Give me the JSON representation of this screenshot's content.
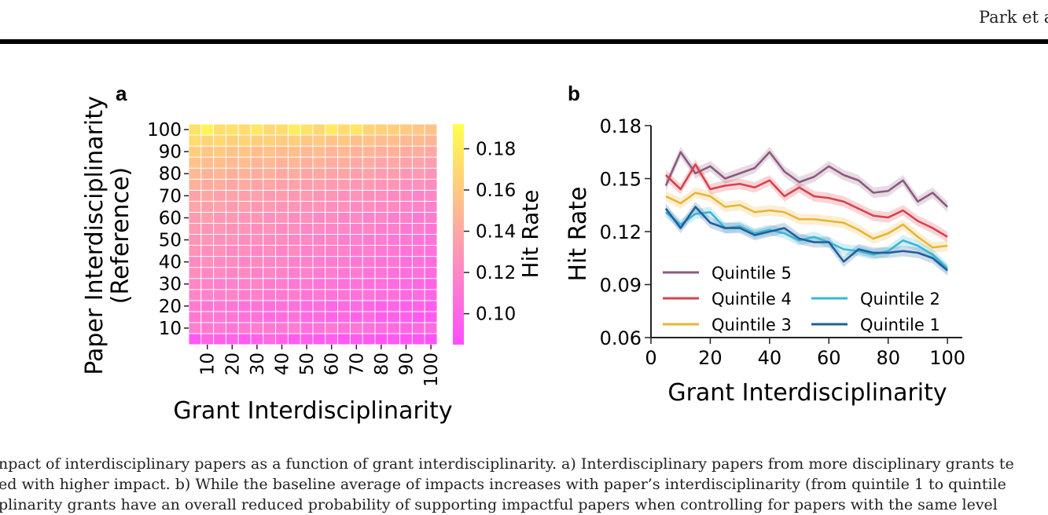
{
  "header": {
    "running_head": "Park et al."
  },
  "panels": {
    "a": {
      "label": "a"
    },
    "b": {
      "label": "b"
    }
  },
  "chart_data": [
    {
      "type": "heatmap",
      "panel": "a",
      "xlabel": "Grant Interdisciplinarity",
      "ylabel_line1": "Paper Interdisciplinarity",
      "ylabel_line2": "(Reference)",
      "x_ticks": [
        10,
        20,
        30,
        40,
        50,
        60,
        70,
        80,
        90,
        100
      ],
      "y_ticks": [
        10,
        20,
        30,
        40,
        50,
        60,
        70,
        80,
        90,
        100
      ],
      "colorbar": {
        "label": "Hit Rate",
        "ticks": [
          0.1,
          0.12,
          0.14,
          0.16,
          0.18
        ],
        "range": [
          0.085,
          0.192
        ],
        "cmap": "spring"
      },
      "grid_note": "20x20 cells; rows from bottom (low paper interdisciplinarity) to top (high); columns from left (low grant interdisciplinarity) to right (high)",
      "rows": [
        [
          0.092,
          0.1,
          0.098,
          0.099,
          0.095,
          0.098,
          0.102,
          0.099,
          0.094,
          0.096,
          0.094,
          0.096,
          0.092,
          0.094,
          0.093,
          0.091,
          0.093,
          0.091,
          0.089,
          0.088
        ],
        [
          0.116,
          0.112,
          0.113,
          0.11,
          0.112,
          0.115,
          0.112,
          0.11,
          0.114,
          0.107,
          0.109,
          0.112,
          0.108,
          0.111,
          0.107,
          0.105,
          0.104,
          0.101,
          0.103,
          0.104
        ],
        [
          0.112,
          0.113,
          0.11,
          0.111,
          0.108,
          0.107,
          0.104,
          0.105,
          0.108,
          0.103,
          0.103,
          0.1,
          0.102,
          0.099,
          0.103,
          0.096,
          0.098,
          0.097,
          0.093,
          0.094
        ],
        [
          0.114,
          0.11,
          0.112,
          0.11,
          0.108,
          0.109,
          0.106,
          0.108,
          0.107,
          0.104,
          0.105,
          0.101,
          0.103,
          0.104,
          0.101,
          0.098,
          0.1,
          0.097,
          0.099,
          0.095
        ],
        [
          0.12,
          0.117,
          0.116,
          0.118,
          0.114,
          0.116,
          0.113,
          0.112,
          0.114,
          0.109,
          0.111,
          0.108,
          0.109,
          0.107,
          0.109,
          0.105,
          0.106,
          0.102,
          0.103,
          0.1
        ],
        [
          0.12,
          0.118,
          0.115,
          0.117,
          0.116,
          0.118,
          0.113,
          0.114,
          0.111,
          0.112,
          0.109,
          0.11,
          0.107,
          0.108,
          0.105,
          0.106,
          0.103,
          0.104,
          0.101,
          0.099
        ],
        [
          0.124,
          0.12,
          0.122,
          0.119,
          0.121,
          0.116,
          0.119,
          0.117,
          0.115,
          0.116,
          0.112,
          0.114,
          0.11,
          0.113,
          0.108,
          0.109,
          0.107,
          0.105,
          0.106,
          0.103
        ],
        [
          0.122,
          0.125,
          0.121,
          0.123,
          0.119,
          0.122,
          0.118,
          0.12,
          0.116,
          0.117,
          0.115,
          0.113,
          0.114,
          0.111,
          0.112,
          0.108,
          0.11,
          0.106,
          0.107,
          0.104
        ],
        [
          0.128,
          0.124,
          0.126,
          0.122,
          0.124,
          0.12,
          0.123,
          0.118,
          0.121,
          0.117,
          0.119,
          0.115,
          0.117,
          0.113,
          0.115,
          0.111,
          0.112,
          0.109,
          0.11,
          0.107
        ],
        [
          0.127,
          0.129,
          0.125,
          0.127,
          0.123,
          0.125,
          0.121,
          0.123,
          0.12,
          0.121,
          0.117,
          0.119,
          0.115,
          0.116,
          0.113,
          0.114,
          0.111,
          0.112,
          0.108,
          0.109
        ],
        [
          0.132,
          0.128,
          0.13,
          0.126,
          0.128,
          0.124,
          0.127,
          0.122,
          0.125,
          0.12,
          0.122,
          0.118,
          0.12,
          0.116,
          0.118,
          0.114,
          0.116,
          0.112,
          0.113,
          0.11
        ],
        [
          0.131,
          0.134,
          0.129,
          0.131,
          0.128,
          0.13,
          0.125,
          0.127,
          0.124,
          0.125,
          0.121,
          0.123,
          0.119,
          0.121,
          0.117,
          0.118,
          0.115,
          0.116,
          0.112,
          0.114
        ],
        [
          0.138,
          0.134,
          0.136,
          0.132,
          0.134,
          0.13,
          0.132,
          0.128,
          0.13,
          0.126,
          0.128,
          0.124,
          0.126,
          0.122,
          0.124,
          0.12,
          0.122,
          0.118,
          0.119,
          0.116
        ],
        [
          0.137,
          0.14,
          0.135,
          0.137,
          0.134,
          0.136,
          0.131,
          0.133,
          0.13,
          0.131,
          0.127,
          0.129,
          0.125,
          0.127,
          0.123,
          0.124,
          0.121,
          0.122,
          0.118,
          0.12
        ],
        [
          0.145,
          0.141,
          0.143,
          0.139,
          0.141,
          0.137,
          0.139,
          0.135,
          0.137,
          0.133,
          0.135,
          0.131,
          0.133,
          0.129,
          0.131,
          0.127,
          0.129,
          0.125,
          0.126,
          0.123
        ],
        [
          0.15,
          0.146,
          0.148,
          0.144,
          0.146,
          0.142,
          0.144,
          0.14,
          0.142,
          0.138,
          0.14,
          0.136,
          0.138,
          0.134,
          0.136,
          0.132,
          0.134,
          0.13,
          0.131,
          0.128
        ],
        [
          0.156,
          0.152,
          0.154,
          0.15,
          0.152,
          0.148,
          0.15,
          0.146,
          0.148,
          0.144,
          0.146,
          0.142,
          0.144,
          0.14,
          0.142,
          0.138,
          0.14,
          0.136,
          0.137,
          0.134
        ],
        [
          0.162,
          0.158,
          0.16,
          0.156,
          0.158,
          0.154,
          0.156,
          0.152,
          0.154,
          0.15,
          0.152,
          0.148,
          0.15,
          0.146,
          0.148,
          0.144,
          0.146,
          0.142,
          0.143,
          0.14
        ],
        [
          0.17,
          0.166,
          0.168,
          0.164,
          0.166,
          0.162,
          0.164,
          0.16,
          0.162,
          0.158,
          0.16,
          0.156,
          0.158,
          0.154,
          0.156,
          0.152,
          0.154,
          0.15,
          0.151,
          0.148
        ],
        [
          0.175,
          0.185,
          0.172,
          0.174,
          0.17,
          0.178,
          0.169,
          0.171,
          0.181,
          0.176,
          0.168,
          0.18,
          0.17,
          0.177,
          0.166,
          0.165,
          0.163,
          0.16,
          0.158,
          0.156
        ]
      ]
    },
    {
      "type": "line",
      "panel": "b",
      "xlabel": "Grant Interdisciplinarity",
      "ylabel": "Hit Rate",
      "xlim": [
        0,
        105
      ],
      "ylim": [
        0.06,
        0.18
      ],
      "x_ticks": [
        0,
        20,
        40,
        60,
        80,
        100
      ],
      "y_ticks": [
        0.06,
        0.09,
        0.12,
        0.15,
        0.18
      ],
      "y_tick_labels": [
        "0.06",
        "0.09",
        "0.12",
        "0.15",
        "0.18"
      ],
      "legend_position": "lower-left",
      "x": [
        5,
        10,
        15,
        20,
        25,
        30,
        35,
        40,
        45,
        50,
        55,
        60,
        65,
        70,
        75,
        80,
        85,
        90,
        95,
        100
      ],
      "series": [
        {
          "name": "Quintile 5",
          "color": "#8e5a7e",
          "values": [
            0.146,
            0.165,
            0.153,
            0.157,
            0.15,
            0.153,
            0.156,
            0.165,
            0.154,
            0.148,
            0.151,
            0.157,
            0.152,
            0.149,
            0.142,
            0.143,
            0.149,
            0.137,
            0.142,
            0.134
          ]
        },
        {
          "name": "Quintile 4",
          "color": "#d9414a",
          "values": [
            0.152,
            0.144,
            0.158,
            0.144,
            0.146,
            0.147,
            0.145,
            0.149,
            0.14,
            0.145,
            0.14,
            0.139,
            0.137,
            0.133,
            0.129,
            0.128,
            0.132,
            0.126,
            0.122,
            0.117
          ]
        },
        {
          "name": "Quintile 3",
          "color": "#e8b435",
          "values": [
            0.14,
            0.136,
            0.142,
            0.14,
            0.134,
            0.135,
            0.131,
            0.132,
            0.131,
            0.127,
            0.127,
            0.126,
            0.125,
            0.121,
            0.116,
            0.119,
            0.124,
            0.117,
            0.111,
            0.112
          ]
        },
        {
          "name": "Quintile 2",
          "color": "#3ab6d4",
          "values": [
            0.131,
            0.124,
            0.13,
            0.131,
            0.122,
            0.123,
            0.119,
            0.121,
            0.119,
            0.115,
            0.117,
            0.114,
            0.11,
            0.109,
            0.107,
            0.109,
            0.115,
            0.112,
            0.107,
            0.099
          ]
        },
        {
          "name": "Quintile 1",
          "color": "#1f5f9c",
          "values": [
            0.133,
            0.122,
            0.134,
            0.125,
            0.122,
            0.122,
            0.118,
            0.12,
            0.122,
            0.116,
            0.114,
            0.114,
            0.103,
            0.11,
            0.108,
            0.108,
            0.109,
            0.108,
            0.105,
            0.098
          ]
        }
      ],
      "band_halfwidth": 0.003
    }
  ],
  "caption": {
    "line1": "npact of interdisciplinary papers as a function of grant interdisciplinarity. a) Interdisciplinary papers from more disciplinary grants te",
    "line2": "ed with higher impact. b) While the baseline average of impacts increases with paper’s interdisciplinarity (from quintile 1 to quintile",
    "line3": "plinarity grants have an overall reduced probability of supporting impactful papers when controlling for papers with the same level"
  }
}
